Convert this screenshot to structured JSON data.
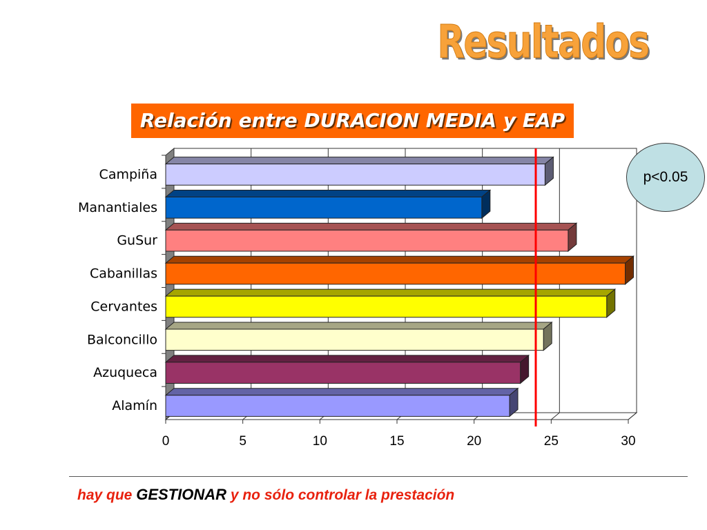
{
  "title": "Resultados",
  "banner": "Relación entre DURACION MEDIA y EAP",
  "badge": "p<0.05",
  "footer": {
    "part1": "hay que",
    "emphasis": "GESTIONAR",
    "part2": "y no sólo controlar la prestación"
  },
  "chart_data": {
    "type": "bar",
    "orientation": "horizontal",
    "categories": [
      "Campiña",
      "Manantiales",
      "GuSur",
      "Cabanillas",
      "Cervantes",
      "Balconcillo",
      "Azuqueca",
      "Alamín"
    ],
    "values": [
      24.6,
      20.5,
      26.1,
      29.8,
      28.6,
      24.5,
      23.0,
      22.3
    ],
    "colors": [
      "#CCCCFF",
      "#0066CC",
      "#FF8080",
      "#FF6600",
      "#FFFF00",
      "#FFFFCC",
      "#993366",
      "#9999FF"
    ],
    "xlim": [
      0,
      30
    ],
    "xticks": [
      "0",
      "5",
      "10",
      "15",
      "20",
      "25",
      "30"
    ],
    "reference_line": 24.0,
    "reference_color": "#FF0000",
    "grid": true,
    "legend": "none"
  }
}
